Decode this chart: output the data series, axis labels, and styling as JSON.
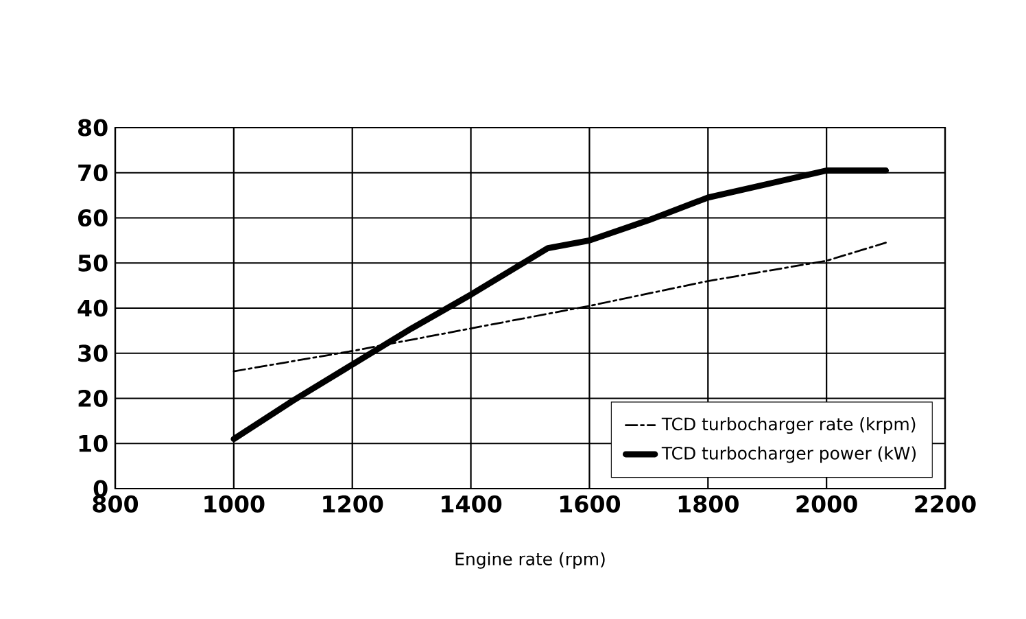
{
  "chart_data": {
    "type": "line",
    "xlabel": "Engine rate (rpm)",
    "xlim": [
      800,
      2200
    ],
    "xticks": [
      800,
      1000,
      1200,
      1400,
      1600,
      1800,
      2000,
      2200
    ],
    "ylim": [
      0,
      80
    ],
    "yticks": [
      0,
      10,
      20,
      30,
      40,
      50,
      60,
      70,
      80
    ],
    "grid": true,
    "legend": "bottom right",
    "marker": "none",
    "series": [
      {
        "name": "TCD turbocharger rate (krpm)",
        "color": "#000000",
        "line_style": "dashdot",
        "x": [
          1000,
          1200,
          1400,
          1600,
          1800,
          2000,
          2100
        ],
        "values": [
          26,
          30.5,
          35.5,
          40.5,
          46,
          50.5,
          54.5
        ]
      },
      {
        "name": "TCD turbocharger power (kW)",
        "color": "#000000",
        "line_style": "solid",
        "x": [
          1000,
          1100,
          1200,
          1300,
          1400,
          1530,
          1600,
          1700,
          1800,
          1900,
          2000,
          2100
        ],
        "values": [
          11,
          19.5,
          27.5,
          35.5,
          43,
          53.3,
          55,
          59.5,
          64.5,
          67.5,
          70.5,
          70.5
        ]
      }
    ]
  }
}
